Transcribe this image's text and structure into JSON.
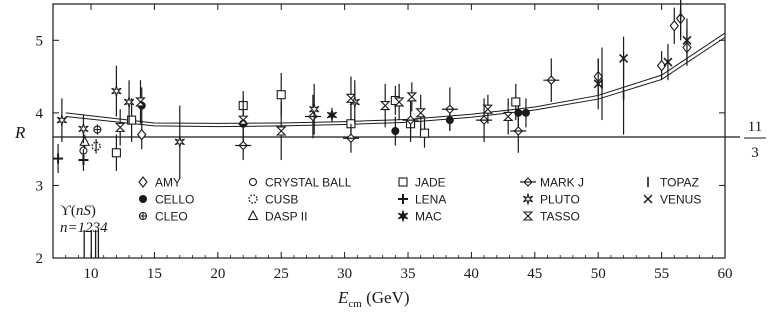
{
  "chart_data": {
    "type": "scatter",
    "title": "",
    "xlabel": {
      "main": "E",
      "sub": "cm",
      "unit": " (GeV)"
    },
    "ylabel": "R",
    "xlim": [
      7,
      60
    ],
    "ylim": [
      2,
      5.5
    ],
    "xticks": [
      10,
      15,
      20,
      25,
      30,
      35,
      40,
      45,
      50,
      55,
      60
    ],
    "yticks": [
      2,
      3,
      4,
      5
    ],
    "grid": false,
    "legend_position": "bottom-center",
    "reference_line": {
      "y": 3.667,
      "num": "11",
      "den": "3"
    },
    "upsilon": {
      "label_prefix": "ϒ(",
      "label_var": "nS",
      "label_suffix": ")",
      "n_label": "n=1234",
      "x": [
        9.46,
        10.02,
        10.36,
        10.58
      ]
    },
    "fit": {
      "description": "QCD prediction band",
      "x": [
        8,
        15,
        20,
        25,
        30,
        35,
        40,
        45,
        50,
        55,
        60
      ],
      "upper": [
        4.0,
        3.86,
        3.855,
        3.86,
        3.88,
        3.91,
        3.98,
        4.08,
        4.24,
        4.52,
        5.1
      ],
      "lower": [
        3.95,
        3.82,
        3.81,
        3.82,
        3.84,
        3.87,
        3.94,
        4.04,
        4.19,
        4.46,
        5.04
      ]
    },
    "legend": [
      {
        "label": "AMY",
        "marker": "diamond"
      },
      {
        "label": "CELLO",
        "marker": "filled-circle"
      },
      {
        "label": "CLEO",
        "marker": "circle-plus"
      },
      {
        "label": "CRYSTAL BALL",
        "marker": "circle"
      },
      {
        "label": "CUSB",
        "marker": "dashed-circle"
      },
      {
        "label": "DASP II",
        "marker": "triangle"
      },
      {
        "label": "JADE",
        "marker": "square"
      },
      {
        "label": "LENA",
        "marker": "plus"
      },
      {
        "label": "MAC",
        "marker": "star-filled"
      },
      {
        "label": "MARK J",
        "marker": "diamond-cross"
      },
      {
        "label": "PLUTO",
        "marker": "star-open"
      },
      {
        "label": "TASSO",
        "marker": "hourglass"
      },
      {
        "label": "TOPAZ",
        "marker": "bar"
      },
      {
        "label": "VENUS",
        "marker": "x"
      }
    ],
    "series": [
      {
        "name": "AMY",
        "marker": "diamond",
        "points": [
          [
            14,
            3.7,
            0.2
          ],
          [
            50,
            4.5,
            0.25
          ],
          [
            55,
            4.65,
            0.2
          ],
          [
            56,
            5.2,
            0.25
          ],
          [
            56.5,
            5.3,
            0.25
          ],
          [
            57,
            4.9,
            0.25
          ]
        ]
      },
      {
        "name": "CELLO",
        "marker": "filled-circle",
        "points": [
          [
            14,
            4.1,
            0.25
          ],
          [
            22,
            3.85,
            0.2
          ],
          [
            34,
            3.75,
            0.2
          ],
          [
            38.3,
            3.9,
            0.15
          ],
          [
            43.7,
            4.0,
            0.2
          ],
          [
            44.3,
            4.0,
            0.2
          ]
        ]
      },
      {
        "name": "CLEO",
        "marker": "circle-plus",
        "points": [
          [
            10.5,
            3.77,
            0.07
          ]
        ]
      },
      {
        "name": "CRYSTAL BALL",
        "marker": "circle",
        "points": [
          [
            9.4,
            3.48,
            0.15
          ]
        ]
      },
      {
        "name": "CUSB",
        "marker": "dashed-circle",
        "points": [
          [
            10.4,
            3.54,
            0.1
          ]
        ]
      },
      {
        "name": "DASP II",
        "marker": "triangle",
        "points": [
          [
            9.5,
            3.6,
            0.1
          ]
        ]
      },
      {
        "name": "JADE",
        "marker": "square",
        "points": [
          [
            12,
            3.45,
            0.25
          ],
          [
            13.2,
            3.9,
            0.3
          ],
          [
            22,
            4.1,
            0.2
          ],
          [
            25,
            4.25,
            0.3
          ],
          [
            30.5,
            3.85,
            0.25
          ],
          [
            34,
            4.17,
            0.2
          ],
          [
            35.2,
            3.85,
            0.15
          ],
          [
            36.3,
            3.72,
            0.2
          ],
          [
            43.5,
            4.15,
            0.25
          ]
        ]
      },
      {
        "name": "LENA",
        "marker": "plus",
        "points": [
          [
            7.4,
            3.37,
            0.2
          ],
          [
            9.4,
            3.35,
            0.15
          ]
        ]
      },
      {
        "name": "MAC",
        "marker": "star-filled",
        "points": [
          [
            29,
            3.97,
            0.1
          ]
        ]
      },
      {
        "name": "MARK J",
        "marker": "diamond-cross",
        "points": [
          [
            22,
            3.55,
            0.2
          ],
          [
            27.5,
            3.95,
            0.3
          ],
          [
            30.5,
            3.65,
            0.2
          ],
          [
            35.2,
            3.9,
            0.3
          ],
          [
            38.3,
            4.05,
            0.3
          ],
          [
            41,
            3.9,
            0.3
          ],
          [
            43.7,
            3.75,
            0.3
          ],
          [
            46.3,
            4.45,
            0.3
          ]
        ]
      },
      {
        "name": "PLUTO",
        "marker": "star-open",
        "points": [
          [
            7.7,
            3.9,
            0.3
          ],
          [
            9.4,
            3.78,
            0.2
          ],
          [
            12,
            4.3,
            0.35
          ],
          [
            13,
            4.15,
            0.3
          ],
          [
            17,
            3.6,
            0.5
          ],
          [
            27.6,
            4.05,
            0.35
          ],
          [
            30.8,
            4.15,
            0.3
          ]
        ]
      },
      {
        "name": "TASSO",
        "marker": "hourglass",
        "points": [
          [
            12.3,
            3.8,
            0.25
          ],
          [
            13.9,
            4.15,
            0.3
          ],
          [
            22,
            3.9,
            0.3
          ],
          [
            25,
            3.75,
            0.4
          ],
          [
            30.5,
            4.2,
            0.3
          ],
          [
            33.2,
            4.1,
            0.3
          ],
          [
            34.3,
            4.15,
            0.25
          ],
          [
            35.3,
            4.22,
            0.2
          ],
          [
            36,
            4.0,
            0.25
          ],
          [
            41.3,
            4.05,
            0.2
          ],
          [
            42.9,
            3.95,
            0.25
          ]
        ]
      },
      {
        "name": "TOPAZ",
        "marker": "bar",
        "points": [
          [
            50.3,
            4.4,
            0.5
          ],
          [
            52,
            4.25,
            0.55
          ],
          [
            56.5,
            5.35,
            0.35
          ]
        ]
      },
      {
        "name": "VENUS",
        "marker": "x",
        "points": [
          [
            50,
            4.4,
            0.35
          ],
          [
            52,
            4.75,
            0.3
          ],
          [
            55.5,
            4.7,
            0.25
          ],
          [
            57,
            5.0,
            0.3
          ]
        ]
      }
    ]
  }
}
